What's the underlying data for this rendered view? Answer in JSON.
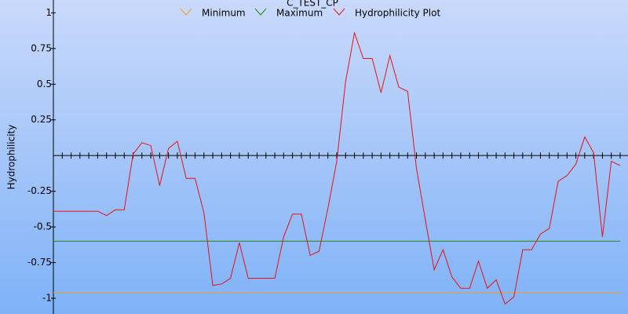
{
  "chart_data": {
    "type": "line",
    "title": "C_TEST_CP",
    "y_label": "Hydrophilicity",
    "ylim": [
      -1.11,
      1.09
    ],
    "yticks": [
      1,
      0.75,
      0.5,
      0.25,
      -0.25,
      -0.5,
      -0.75,
      -1
    ],
    "series": [
      {
        "name": "Minimum",
        "color": "#f0a020",
        "values": [
          -0.96,
          -0.96,
          -0.96,
          -0.96,
          -0.96,
          -0.96,
          -0.96,
          -0.96,
          -0.96,
          -0.96,
          -0.96,
          -0.96,
          -0.96,
          -0.96,
          -0.96,
          -0.96,
          -0.96,
          -0.96,
          -0.96,
          -0.96,
          -0.96,
          -0.96,
          -0.96,
          -0.96,
          -0.96,
          -0.96,
          -0.96,
          -0.96,
          -0.96,
          -0.96,
          -0.96,
          -0.96,
          -0.96,
          -0.96,
          -0.96,
          -0.96,
          -0.96,
          -0.96,
          -0.96,
          -0.96,
          -0.96,
          -0.96,
          -0.96,
          -0.96,
          -0.96,
          -0.96,
          -0.96,
          -0.96,
          -0.96,
          -0.96,
          -0.96,
          -0.96,
          -0.96,
          -0.96,
          -0.96,
          -0.96,
          -0.96,
          -0.96,
          -0.96,
          -0.96,
          -0.96,
          -0.96,
          -0.96,
          -0.96,
          -0.96
        ]
      },
      {
        "name": "Maximum",
        "color": "#1a8a1a",
        "values": [
          -0.6,
          -0.6,
          -0.6,
          -0.6,
          -0.6,
          -0.6,
          -0.6,
          -0.6,
          -0.6,
          -0.6,
          -0.6,
          -0.6,
          -0.6,
          -0.6,
          -0.6,
          -0.6,
          -0.6,
          -0.6,
          -0.6,
          -0.6,
          -0.6,
          -0.6,
          -0.6,
          -0.6,
          -0.6,
          -0.6,
          -0.6,
          -0.6,
          -0.6,
          -0.6,
          -0.6,
          -0.6,
          -0.6,
          -0.6,
          -0.6,
          -0.6,
          -0.6,
          -0.6,
          -0.6,
          -0.6,
          -0.6,
          -0.6,
          -0.6,
          -0.6,
          -0.6,
          -0.6,
          -0.6,
          -0.6,
          -0.6,
          -0.6,
          -0.6,
          -0.6,
          -0.6,
          -0.6,
          -0.6,
          -0.6,
          -0.6,
          -0.6,
          -0.6,
          -0.6,
          -0.6,
          -0.6,
          -0.6,
          -0.6,
          -0.6
        ]
      },
      {
        "name": "Hydrophilicity Plot",
        "color": "#e8101a",
        "values": [
          -0.39,
          -0.39,
          -0.39,
          -0.39,
          -0.39,
          -0.39,
          -0.42,
          -0.38,
          -0.38,
          0.01,
          0.09,
          0.07,
          -0.21,
          0.05,
          0.1,
          -0.16,
          -0.16,
          -0.4,
          -0.91,
          -0.9,
          -0.86,
          -0.61,
          -0.86,
          -0.86,
          -0.86,
          -0.86,
          -0.57,
          -0.41,
          -0.41,
          -0.7,
          -0.67,
          -0.37,
          -0.04,
          0.52,
          0.86,
          0.68,
          0.68,
          0.44,
          0.7,
          0.48,
          0.45,
          -0.09,
          -0.45,
          -0.8,
          -0.66,
          -0.85,
          -0.93,
          -0.93,
          -0.74,
          -0.93,
          -0.87,
          -1.04,
          -0.99,
          -0.66,
          -0.66,
          -0.55,
          -0.51,
          -0.18,
          -0.14,
          -0.06,
          0.13,
          0.02,
          -0.57,
          -0.04,
          -0.07
        ]
      }
    ]
  }
}
